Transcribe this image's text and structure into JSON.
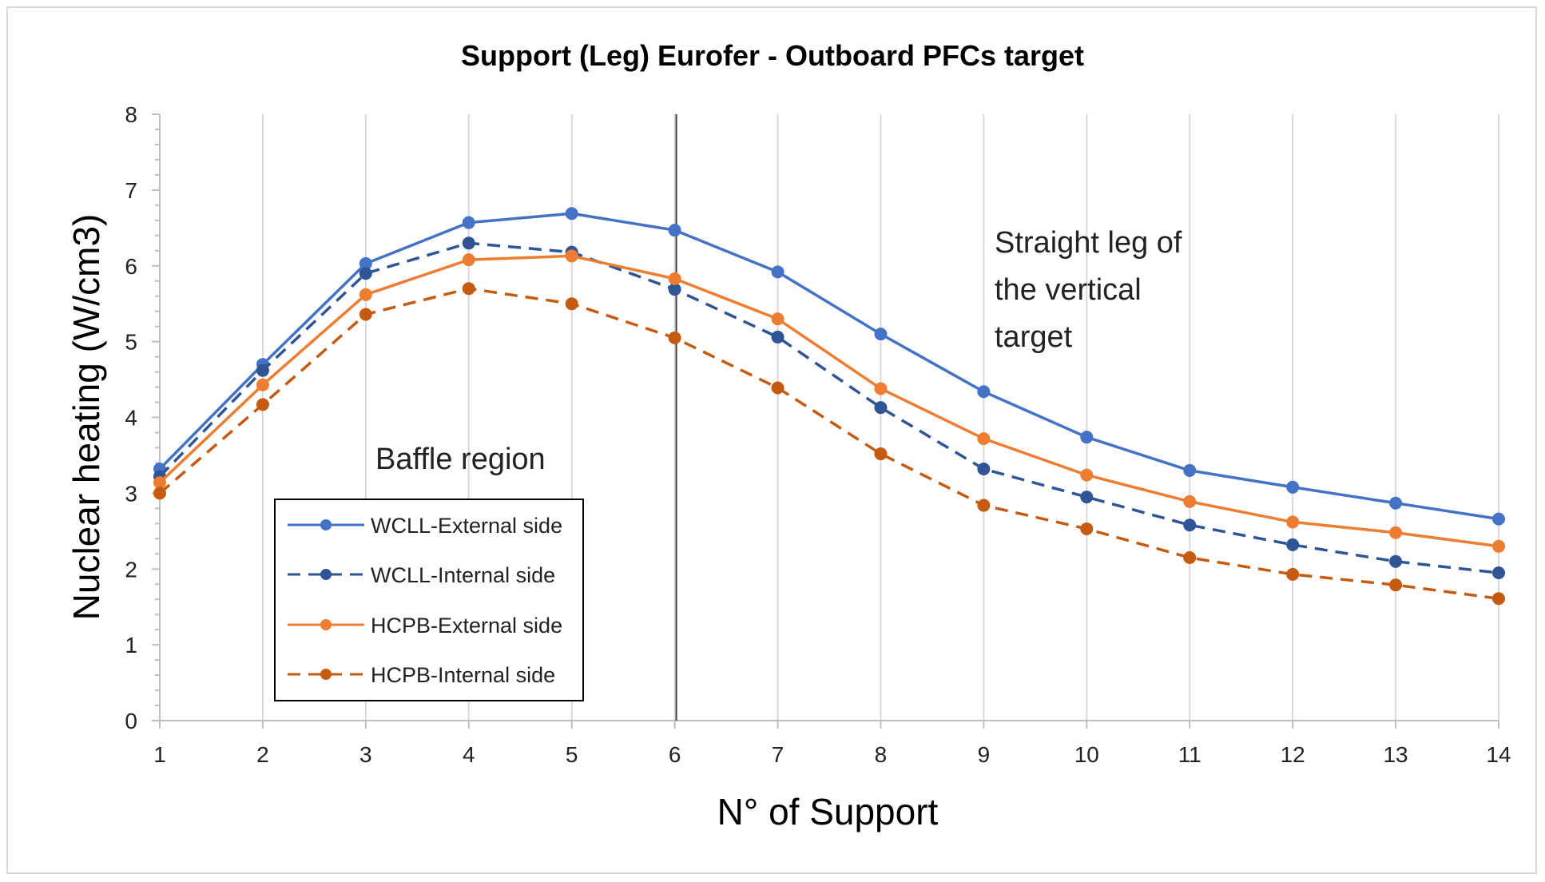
{
  "chart_data": {
    "type": "line",
    "title": "Support (Leg) Eurofer - Outboard PFCs target",
    "xlabel": "N° of Support",
    "ylabel": "Nuclear heating (W/cm3)",
    "x": [
      1,
      2,
      3,
      4,
      5,
      6,
      7,
      8,
      9,
      10,
      11,
      12,
      13,
      14
    ],
    "x_tick_labels": [
      "1",
      "2",
      "3",
      "4",
      "5",
      "6",
      "7",
      "8",
      "9",
      "10",
      "11",
      "12",
      "13",
      "14"
    ],
    "y_tick_labels": [
      "0",
      "1",
      "2",
      "3",
      "4",
      "5",
      "6",
      "7",
      "8"
    ],
    "xlim": [
      1,
      14
    ],
    "ylim": [
      0,
      8
    ],
    "grid": "vertical",
    "series": [
      {
        "name": "WCLL-External side",
        "color": "#4472c4",
        "dash": false,
        "values": [
          3.32,
          4.7,
          6.03,
          6.57,
          6.69,
          6.47,
          5.92,
          5.1,
          4.34,
          3.74,
          3.3,
          3.08,
          2.87,
          2.66
        ]
      },
      {
        "name": "WCLL-Internal side",
        "color": "#2f5597",
        "dash": true,
        "values": [
          3.22,
          4.62,
          5.9,
          6.3,
          6.18,
          5.69,
          5.06,
          4.13,
          3.32,
          2.95,
          2.58,
          2.32,
          2.1,
          1.95
        ]
      },
      {
        "name": "HCPB-External side",
        "color": "#ed7d31",
        "dash": false,
        "values": [
          3.14,
          4.43,
          5.62,
          6.08,
          6.13,
          5.83,
          5.3,
          4.38,
          3.72,
          3.24,
          2.89,
          2.62,
          2.48,
          2.3
        ]
      },
      {
        "name": "HCPB-Internal side",
        "color": "#c55a11",
        "dash": true,
        "values": [
          3.0,
          4.17,
          5.36,
          5.7,
          5.5,
          5.05,
          4.39,
          3.52,
          2.84,
          2.53,
          2.15,
          1.93,
          1.79,
          1.61
        ]
      }
    ],
    "divider_x": 6,
    "annotations": [
      {
        "text": "Baffle region"
      },
      {
        "text_lines": [
          "Straight leg of",
          "the vertical",
          "target"
        ]
      }
    ],
    "legend_position": "lower-left"
  }
}
